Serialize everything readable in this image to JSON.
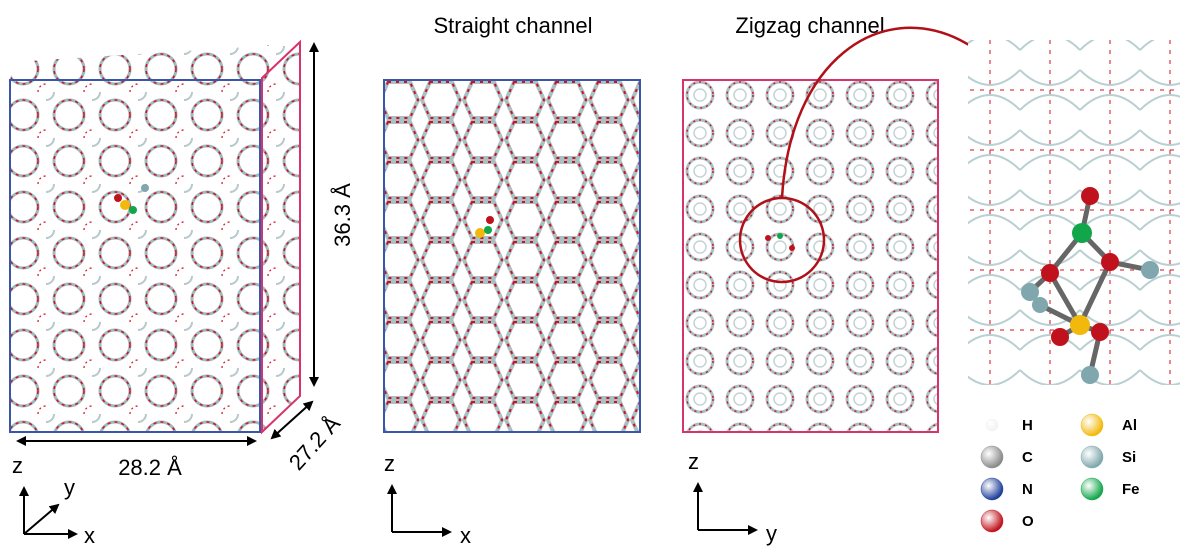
{
  "titles": {
    "straight": "Straight channel",
    "zigzag": "Zigzag channel"
  },
  "dimensions": {
    "width": "28.2 Å",
    "height": "36.3 Å",
    "depth": "27.2 Å"
  },
  "axes": [
    [
      "z",
      "y",
      "x"
    ],
    [
      "z",
      "x"
    ],
    [
      "z",
      "y"
    ]
  ],
  "legend": [
    {
      "label": "H",
      "color": "#f2f2f2"
    },
    {
      "label": "C",
      "color": "#8a8a8a"
    },
    {
      "label": "N",
      "color": "#1f3f9a"
    },
    {
      "label": "O",
      "color": "#c0121c"
    },
    {
      "label": "Al",
      "color": "#f2b90c"
    },
    {
      "label": "Si",
      "color": "#7fa7ad"
    },
    {
      "label": "Fe",
      "color": "#12a64a"
    }
  ]
}
